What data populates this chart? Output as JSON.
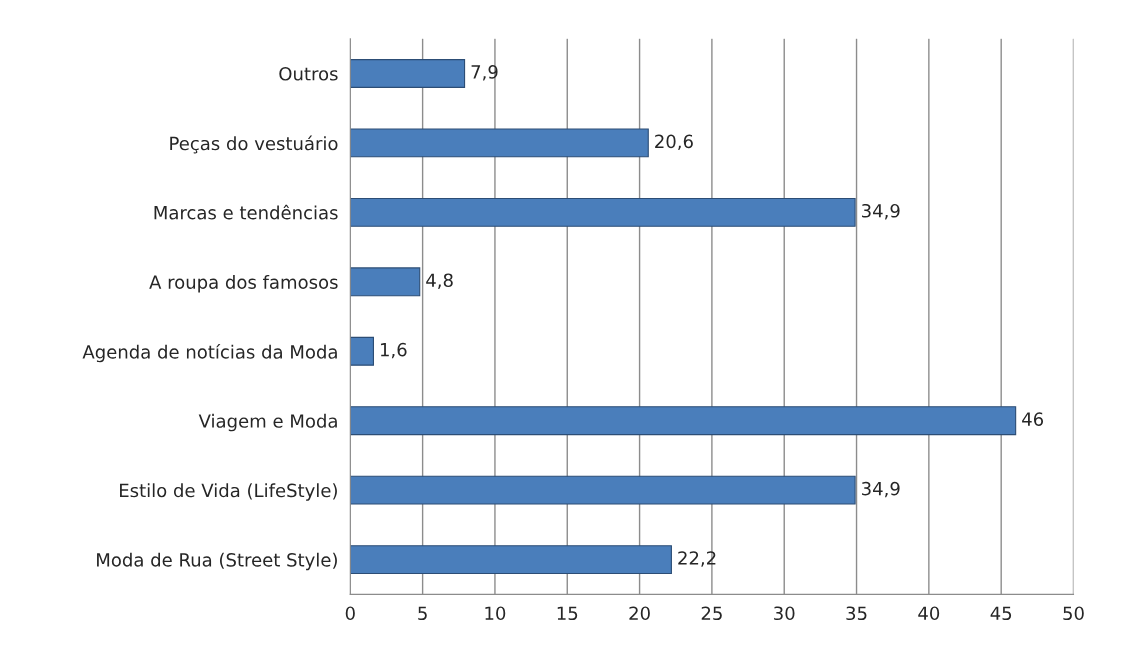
{
  "chart_data": {
    "type": "bar",
    "orientation": "horizontal",
    "categories": [
      "Outros",
      "Peças do vestuário",
      "Marcas e tendências",
      "A roupa dos famosos",
      "Agenda de notícias da Moda",
      "Viagem e Moda",
      "Estilo de Vida (LifeStyle)",
      "Moda de Rua (Street Style)"
    ],
    "values": [
      7.9,
      20.6,
      34.9,
      4.8,
      1.6,
      46,
      34.9,
      22.2
    ],
    "value_labels": [
      "7,9",
      "20,6",
      "34,9",
      "4,8",
      "1,6",
      "46",
      "34,9",
      "22,2"
    ],
    "color": "#4a7ebb",
    "xlim": [
      0,
      50
    ],
    "xticks": [
      0,
      5,
      10,
      15,
      20,
      25,
      30,
      35,
      40,
      45,
      50
    ],
    "grid": "x"
  }
}
